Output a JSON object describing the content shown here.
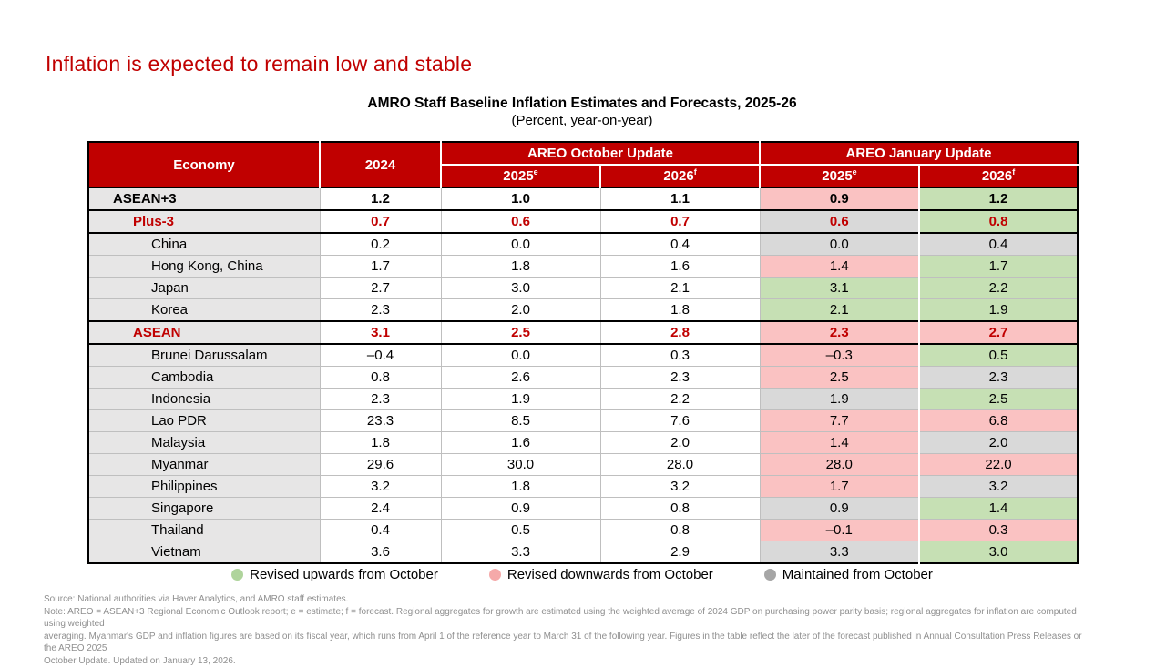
{
  "slide": {
    "title": "Inflation is expected to remain low and stable"
  },
  "table_header": {
    "title": "AMRO Staff Baseline Inflation Estimates and Forecasts, 2025-26",
    "subtitle": "(Percent, year-on-year)",
    "economy_label": "Economy",
    "year_2024_label": "2024",
    "groups": [
      {
        "label": "AREO October Update",
        "cols": [
          {
            "year": "2025",
            "sup": "e"
          },
          {
            "year": "2026",
            "sup": "f"
          }
        ]
      },
      {
        "label": "AREO January Update",
        "cols": [
          {
            "year": "2025",
            "sup": "e"
          },
          {
            "year": "2026",
            "sup": "f"
          }
        ]
      }
    ]
  },
  "status_colors": {
    "up": "#C6E0B4",
    "down": "#FAC2C2",
    "same": "#D9D9D9"
  },
  "rows": [
    {
      "economy": "ASEAN+3",
      "indent": 1,
      "style": "bold-black",
      "sep": "dark",
      "v2024": "1.2",
      "oct": [
        "1.0",
        "1.1"
      ],
      "jan": [
        {
          "v": "0.9",
          "s": "down"
        },
        {
          "v": "1.2",
          "s": "up"
        }
      ]
    },
    {
      "economy": "Plus-3",
      "indent": 2,
      "style": "bold-red",
      "sep": "dark",
      "v2024": "0.7",
      "oct": [
        "0.6",
        "0.7"
      ],
      "jan": [
        {
          "v": "0.6",
          "s": "same"
        },
        {
          "v": "0.8",
          "s": "up"
        }
      ]
    },
    {
      "economy": "China",
      "indent": 3,
      "style": "normal",
      "sep": "dark",
      "v2024": "0.2",
      "oct": [
        "0.0",
        "0.4"
      ],
      "jan": [
        {
          "v": "0.0",
          "s": "same"
        },
        {
          "v": "0.4",
          "s": "same"
        }
      ]
    },
    {
      "economy": "Hong Kong, China",
      "indent": 3,
      "style": "normal",
      "sep": "light",
      "v2024": "1.7",
      "oct": [
        "1.8",
        "1.6"
      ],
      "jan": [
        {
          "v": "1.4",
          "s": "down"
        },
        {
          "v": "1.7",
          "s": "up"
        }
      ]
    },
    {
      "economy": "Japan",
      "indent": 3,
      "style": "normal",
      "sep": "light",
      "v2024": "2.7",
      "oct": [
        "3.0",
        "2.1"
      ],
      "jan": [
        {
          "v": "3.1",
          "s": "up"
        },
        {
          "v": "2.2",
          "s": "up"
        }
      ]
    },
    {
      "economy": "Korea",
      "indent": 3,
      "style": "normal",
      "sep": "light",
      "v2024": "2.3",
      "oct": [
        "2.0",
        "1.8"
      ],
      "jan": [
        {
          "v": "2.1",
          "s": "up"
        },
        {
          "v": "1.9",
          "s": "up"
        }
      ]
    },
    {
      "economy": "ASEAN",
      "indent": 2,
      "style": "bold-red",
      "sep": "dark",
      "v2024": "3.1",
      "oct": [
        "2.5",
        "2.8"
      ],
      "jan": [
        {
          "v": "2.3",
          "s": "down"
        },
        {
          "v": "2.7",
          "s": "down"
        }
      ]
    },
    {
      "economy": "Brunei Darussalam",
      "indent": 3,
      "style": "normal",
      "sep": "dark",
      "v2024": "–0.4",
      "oct": [
        "0.0",
        "0.3"
      ],
      "jan": [
        {
          "v": "–0.3",
          "s": "down"
        },
        {
          "v": "0.5",
          "s": "up"
        }
      ]
    },
    {
      "economy": "Cambodia",
      "indent": 3,
      "style": "normal",
      "sep": "light",
      "v2024": "0.8",
      "oct": [
        "2.6",
        "2.3"
      ],
      "jan": [
        {
          "v": "2.5",
          "s": "down"
        },
        {
          "v": "2.3",
          "s": "same"
        }
      ]
    },
    {
      "economy": "Indonesia",
      "indent": 3,
      "style": "normal",
      "sep": "light",
      "v2024": "2.3",
      "oct": [
        "1.9",
        "2.2"
      ],
      "jan": [
        {
          "v": "1.9",
          "s": "same"
        },
        {
          "v": "2.5",
          "s": "up"
        }
      ]
    },
    {
      "economy": "Lao PDR",
      "indent": 3,
      "style": "normal",
      "sep": "light",
      "v2024": "23.3",
      "oct": [
        "8.5",
        "7.6"
      ],
      "jan": [
        {
          "v": "7.7",
          "s": "down"
        },
        {
          "v": "6.8",
          "s": "down"
        }
      ]
    },
    {
      "economy": "Malaysia",
      "indent": 3,
      "style": "normal",
      "sep": "light",
      "v2024": "1.8",
      "oct": [
        "1.6",
        "2.0"
      ],
      "jan": [
        {
          "v": "1.4",
          "s": "down"
        },
        {
          "v": "2.0",
          "s": "same"
        }
      ]
    },
    {
      "economy": "Myanmar",
      "indent": 3,
      "style": "normal",
      "sep": "light",
      "v2024": "29.6",
      "oct": [
        "30.0",
        "28.0"
      ],
      "jan": [
        {
          "v": "28.0",
          "s": "down"
        },
        {
          "v": "22.0",
          "s": "down"
        }
      ]
    },
    {
      "economy": "Philippines",
      "indent": 3,
      "style": "normal",
      "sep": "light",
      "v2024": "3.2",
      "oct": [
        "1.8",
        "3.2"
      ],
      "jan": [
        {
          "v": "1.7",
          "s": "down"
        },
        {
          "v": "3.2",
          "s": "same"
        }
      ]
    },
    {
      "economy": "Singapore",
      "indent": 3,
      "style": "normal",
      "sep": "light",
      "v2024": "2.4",
      "oct": [
        "0.9",
        "0.8"
      ],
      "jan": [
        {
          "v": "0.9",
          "s": "same"
        },
        {
          "v": "1.4",
          "s": "up"
        }
      ]
    },
    {
      "economy": "Thailand",
      "indent": 3,
      "style": "normal",
      "sep": "light",
      "v2024": "0.4",
      "oct": [
        "0.5",
        "0.8"
      ],
      "jan": [
        {
          "v": "–0.1",
          "s": "down"
        },
        {
          "v": "0.3",
          "s": "down"
        }
      ]
    },
    {
      "economy": "Vietnam",
      "indent": 3,
      "style": "normal",
      "sep": "light",
      "v2024": "3.6",
      "oct": [
        "3.3",
        "2.9"
      ],
      "jan": [
        {
          "v": "3.3",
          "s": "same"
        },
        {
          "v": "3.0",
          "s": "up"
        }
      ]
    }
  ],
  "legend": [
    {
      "label": "Revised upwards from October",
      "color": "#AFD49C"
    },
    {
      "label": "Revised downwards from October",
      "color": "#F5A9A9"
    },
    {
      "label": "Maintained from October",
      "color": "#A6A6A6"
    }
  ],
  "footnotes": [
    "Source: National authorities via Haver Analytics, and AMRO staff estimates.",
    "Note: AREO = ASEAN+3 Regional Economic Outlook report; e = estimate; f = forecast. Regional aggregates for growth are estimated using the weighted average of 2024 GDP on purchasing power parity basis; regional aggregates for inflation are computed using weighted",
    "averaging. Myanmar's GDP and inflation figures are based on its fiscal year, which runs from April 1 of the reference year to March 31 of the following year. Figures in the table reflect the later of the forecast published in Annual Consultation Press Releases or the AREO 2025",
    "October Update. Updated on January 13, 2026."
  ]
}
